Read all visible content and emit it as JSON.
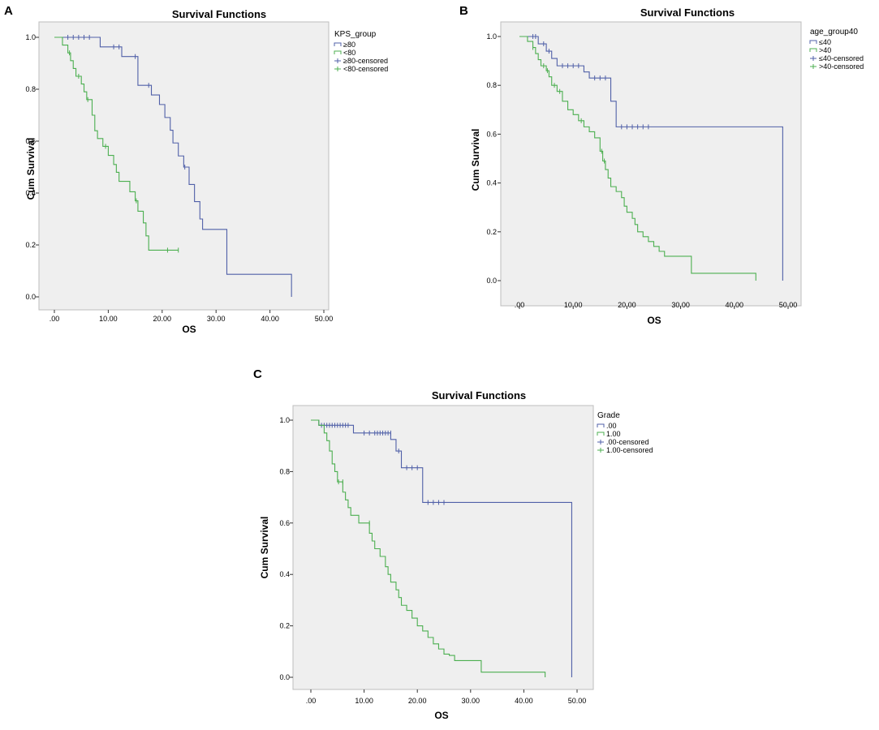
{
  "chart_data": [
    {
      "panel": "A",
      "type": "line",
      "title": "Survival Functions",
      "xlabel": "OS",
      "ylabel": "Cum Survival",
      "xlim": [
        0,
        50
      ],
      "ylim": [
        0,
        1
      ],
      "xticks": [
        0,
        10,
        20,
        30,
        40,
        50
      ],
      "xtick_labels": [
        ".00",
        "10.00",
        "20.00",
        "30.00",
        "40.00",
        "50.00"
      ],
      "yticks": [
        0,
        0.2,
        0.4,
        0.6,
        0.8,
        1.0
      ],
      "ytick_labels": [
        "0.0",
        "0.2",
        "0.4",
        "0.6",
        "0.8",
        "1.0"
      ],
      "legend_title": "KPS_group",
      "legend": [
        "≥80",
        "<80",
        "≥80-censored",
        "<80-censored"
      ],
      "series": [
        {
          "name": "≥80",
          "color": "#5060a8",
          "steps": [
            [
              0,
              1.0
            ],
            [
              8.5,
              0.963
            ],
            [
              12.5,
              0.926
            ],
            [
              15.5,
              0.815
            ],
            [
              18,
              0.778
            ],
            [
              19.5,
              0.741
            ],
            [
              20.5,
              0.691
            ],
            [
              21.5,
              0.642
            ],
            [
              22,
              0.593
            ],
            [
              23,
              0.543
            ],
            [
              24,
              0.5
            ],
            [
              25,
              0.433
            ],
            [
              26,
              0.367
            ],
            [
              27,
              0.3
            ],
            [
              27.5,
              0.26
            ],
            [
              32,
              0.087
            ],
            [
              44,
              0.087
            ],
            [
              44,
              0.0
            ]
          ],
          "censored": [
            [
              2.5,
              1.0
            ],
            [
              3.5,
              1.0
            ],
            [
              4.5,
              1.0
            ],
            [
              5.5,
              1.0
            ],
            [
              6.5,
              1.0
            ],
            [
              11,
              0.963
            ],
            [
              12,
              0.963
            ],
            [
              15,
              0.926
            ],
            [
              17.5,
              0.815
            ],
            [
              24.2,
              0.5
            ]
          ]
        },
        {
          "name": "<80",
          "color": "#4caf50",
          "steps": [
            [
              0,
              1.0
            ],
            [
              1.5,
              0.97
            ],
            [
              2.5,
              0.94
            ],
            [
              3,
              0.91
            ],
            [
              3.5,
              0.88
            ],
            [
              4,
              0.85
            ],
            [
              5,
              0.82
            ],
            [
              5.5,
              0.79
            ],
            [
              6,
              0.76
            ],
            [
              7,
              0.7
            ],
            [
              7.5,
              0.64
            ],
            [
              8,
              0.61
            ],
            [
              9,
              0.58
            ],
            [
              10,
              0.545
            ],
            [
              11,
              0.51
            ],
            [
              11.5,
              0.48
            ],
            [
              12,
              0.445
            ],
            [
              14,
              0.405
            ],
            [
              15,
              0.37
            ],
            [
              15.5,
              0.33
            ],
            [
              16.5,
              0.285
            ],
            [
              17,
              0.235
            ],
            [
              17.5,
              0.18
            ],
            [
              23,
              0.18
            ]
          ],
          "censored": [
            [
              2.8,
              0.94
            ],
            [
              4.5,
              0.85
            ],
            [
              6.2,
              0.76
            ],
            [
              9.5,
              0.58
            ],
            [
              15.2,
              0.37
            ],
            [
              21,
              0.18
            ],
            [
              23,
              0.18
            ]
          ]
        }
      ]
    },
    {
      "panel": "B",
      "type": "line",
      "title": "Survival Functions",
      "xlabel": "OS",
      "ylabel": "Cum Survival",
      "xlim": [
        0,
        50
      ],
      "ylim": [
        0,
        1
      ],
      "xticks": [
        0,
        10,
        20,
        30,
        40,
        50
      ],
      "xtick_labels": [
        ".00",
        "10.00",
        "20.00",
        "30.00",
        "40.00",
        "50.00"
      ],
      "yticks": [
        0,
        0.2,
        0.4,
        0.6,
        0.8,
        1.0
      ],
      "ytick_labels": [
        "0.0",
        "0.2",
        "0.4",
        "0.6",
        "0.8",
        "1.0"
      ],
      "legend_title": "age_group40",
      "legend": [
        "≤40",
        ">40",
        "≤40-censored",
        ">40-censored"
      ],
      "series": [
        {
          "name": "≤40",
          "color": "#5060a8",
          "steps": [
            [
              0,
              1.0
            ],
            [
              3.5,
              0.97
            ],
            [
              5,
              0.94
            ],
            [
              6,
              0.91
            ],
            [
              7,
              0.88
            ],
            [
              12,
              0.855
            ],
            [
              13,
              0.83
            ],
            [
              17,
              0.735
            ],
            [
              18,
              0.63
            ],
            [
              49,
              0.63
            ],
            [
              49,
              0.0
            ]
          ],
          "censored": [
            [
              2.5,
              1.0
            ],
            [
              3,
              1.0
            ],
            [
              4.5,
              0.97
            ],
            [
              5.5,
              0.94
            ],
            [
              8,
              0.88
            ],
            [
              9,
              0.88
            ],
            [
              10,
              0.88
            ],
            [
              11,
              0.88
            ],
            [
              14,
              0.83
            ],
            [
              15,
              0.83
            ],
            [
              16,
              0.83
            ],
            [
              19,
              0.63
            ],
            [
              20,
              0.63
            ],
            [
              21,
              0.63
            ],
            [
              22,
              0.63
            ],
            [
              23,
              0.63
            ],
            [
              24,
              0.63
            ]
          ]
        },
        {
          "name": ">40",
          "color": "#4caf50",
          "steps": [
            [
              0,
              1.0
            ],
            [
              1.5,
              0.98
            ],
            [
              2.5,
              0.955
            ],
            [
              3,
              0.93
            ],
            [
              3.5,
              0.905
            ],
            [
              4,
              0.88
            ],
            [
              5,
              0.86
            ],
            [
              5.5,
              0.835
            ],
            [
              6,
              0.8
            ],
            [
              7,
              0.775
            ],
            [
              8,
              0.735
            ],
            [
              9,
              0.7
            ],
            [
              10,
              0.68
            ],
            [
              11,
              0.655
            ],
            [
              12,
              0.63
            ],
            [
              13,
              0.61
            ],
            [
              14,
              0.585
            ],
            [
              15,
              0.53
            ],
            [
              15.5,
              0.49
            ],
            [
              16,
              0.455
            ],
            [
              16.5,
              0.42
            ],
            [
              17,
              0.385
            ],
            [
              18,
              0.365
            ],
            [
              19,
              0.34
            ],
            [
              19.5,
              0.305
            ],
            [
              20,
              0.28
            ],
            [
              21,
              0.255
            ],
            [
              21.5,
              0.23
            ],
            [
              22,
              0.2
            ],
            [
              23,
              0.18
            ],
            [
              24,
              0.16
            ],
            [
              25,
              0.14
            ],
            [
              26,
              0.12
            ],
            [
              27,
              0.1
            ],
            [
              32,
              0.03
            ],
            [
              44,
              0.03
            ],
            [
              44,
              0.0
            ]
          ],
          "censored": [
            [
              2.5,
              0.955
            ],
            [
              4.5,
              0.88
            ],
            [
              5.2,
              0.86
            ],
            [
              6.5,
              0.8
            ],
            [
              7.5,
              0.775
            ],
            [
              11.5,
              0.655
            ],
            [
              15.3,
              0.53
            ],
            [
              15.8,
              0.49
            ]
          ]
        }
      ]
    },
    {
      "panel": "C",
      "type": "line",
      "title": "Survival Functions",
      "xlabel": "OS",
      "ylabel": "Cum Survival",
      "xlim": [
        0,
        50
      ],
      "ylim": [
        0,
        1
      ],
      "xticks": [
        0,
        10,
        20,
        30,
        40,
        50
      ],
      "xtick_labels": [
        ".00",
        "10.00",
        "20.00",
        "30.00",
        "40.00",
        "50.00"
      ],
      "yticks": [
        0,
        0.2,
        0.4,
        0.6,
        0.8,
        1.0
      ],
      "ytick_labels": [
        "0.0",
        "0.2",
        "0.4",
        "0.6",
        "0.8",
        "1.0"
      ],
      "legend_title": "Grade",
      "legend": [
        ".00",
        "1.00",
        ".00-censored",
        "1.00-censored"
      ],
      "series": [
        {
          "name": ".00",
          "color": "#5060a8",
          "steps": [
            [
              0,
              1.0
            ],
            [
              1.5,
              0.98
            ],
            [
              8,
              0.95
            ],
            [
              15,
              0.925
            ],
            [
              16,
              0.88
            ],
            [
              17,
              0.815
            ],
            [
              21,
              0.68
            ],
            [
              49,
              0.68
            ],
            [
              49,
              0.0
            ]
          ],
          "censored": [
            [
              2,
              0.98
            ],
            [
              2.5,
              0.98
            ],
            [
              3,
              0.98
            ],
            [
              3.5,
              0.98
            ],
            [
              4,
              0.98
            ],
            [
              4.5,
              0.98
            ],
            [
              5,
              0.98
            ],
            [
              5.5,
              0.98
            ],
            [
              6,
              0.98
            ],
            [
              6.5,
              0.98
            ],
            [
              7,
              0.98
            ],
            [
              10,
              0.95
            ],
            [
              11,
              0.95
            ],
            [
              12,
              0.95
            ],
            [
              12.5,
              0.95
            ],
            [
              13,
              0.95
            ],
            [
              13.5,
              0.95
            ],
            [
              14,
              0.95
            ],
            [
              14.5,
              0.95
            ],
            [
              15,
              0.95
            ],
            [
              16.5,
              0.88
            ],
            [
              18,
              0.815
            ],
            [
              19,
              0.815
            ],
            [
              20,
              0.815
            ],
            [
              22,
              0.68
            ],
            [
              23,
              0.68
            ],
            [
              24,
              0.68
            ],
            [
              25,
              0.68
            ]
          ]
        },
        {
          "name": "1.00",
          "color": "#4caf50",
          "steps": [
            [
              0,
              1.0
            ],
            [
              1.5,
              0.98
            ],
            [
              2.5,
              0.95
            ],
            [
              3,
              0.92
            ],
            [
              3.5,
              0.88
            ],
            [
              4,
              0.83
            ],
            [
              4.5,
              0.8
            ],
            [
              5,
              0.76
            ],
            [
              6,
              0.72
            ],
            [
              6.5,
              0.69
            ],
            [
              7,
              0.66
            ],
            [
              7.5,
              0.63
            ],
            [
              9,
              0.6
            ],
            [
              11,
              0.56
            ],
            [
              11.5,
              0.53
            ],
            [
              12,
              0.5
            ],
            [
              13,
              0.47
            ],
            [
              14,
              0.43
            ],
            [
              14.5,
              0.4
            ],
            [
              15,
              0.37
            ],
            [
              16,
              0.34
            ],
            [
              16.5,
              0.31
            ],
            [
              17,
              0.28
            ],
            [
              18,
              0.26
            ],
            [
              19,
              0.23
            ],
            [
              20,
              0.2
            ],
            [
              21,
              0.18
            ],
            [
              22,
              0.155
            ],
            [
              23,
              0.13
            ],
            [
              24,
              0.11
            ],
            [
              25,
              0.09
            ],
            [
              26,
              0.085
            ],
            [
              27,
              0.065
            ],
            [
              32,
              0.02
            ],
            [
              44,
              0.02
            ],
            [
              44,
              0.0
            ]
          ],
          "censored": [
            [
              5.2,
              0.76
            ],
            [
              6,
              0.76
            ],
            [
              11,
              0.6
            ]
          ]
        }
      ]
    }
  ]
}
